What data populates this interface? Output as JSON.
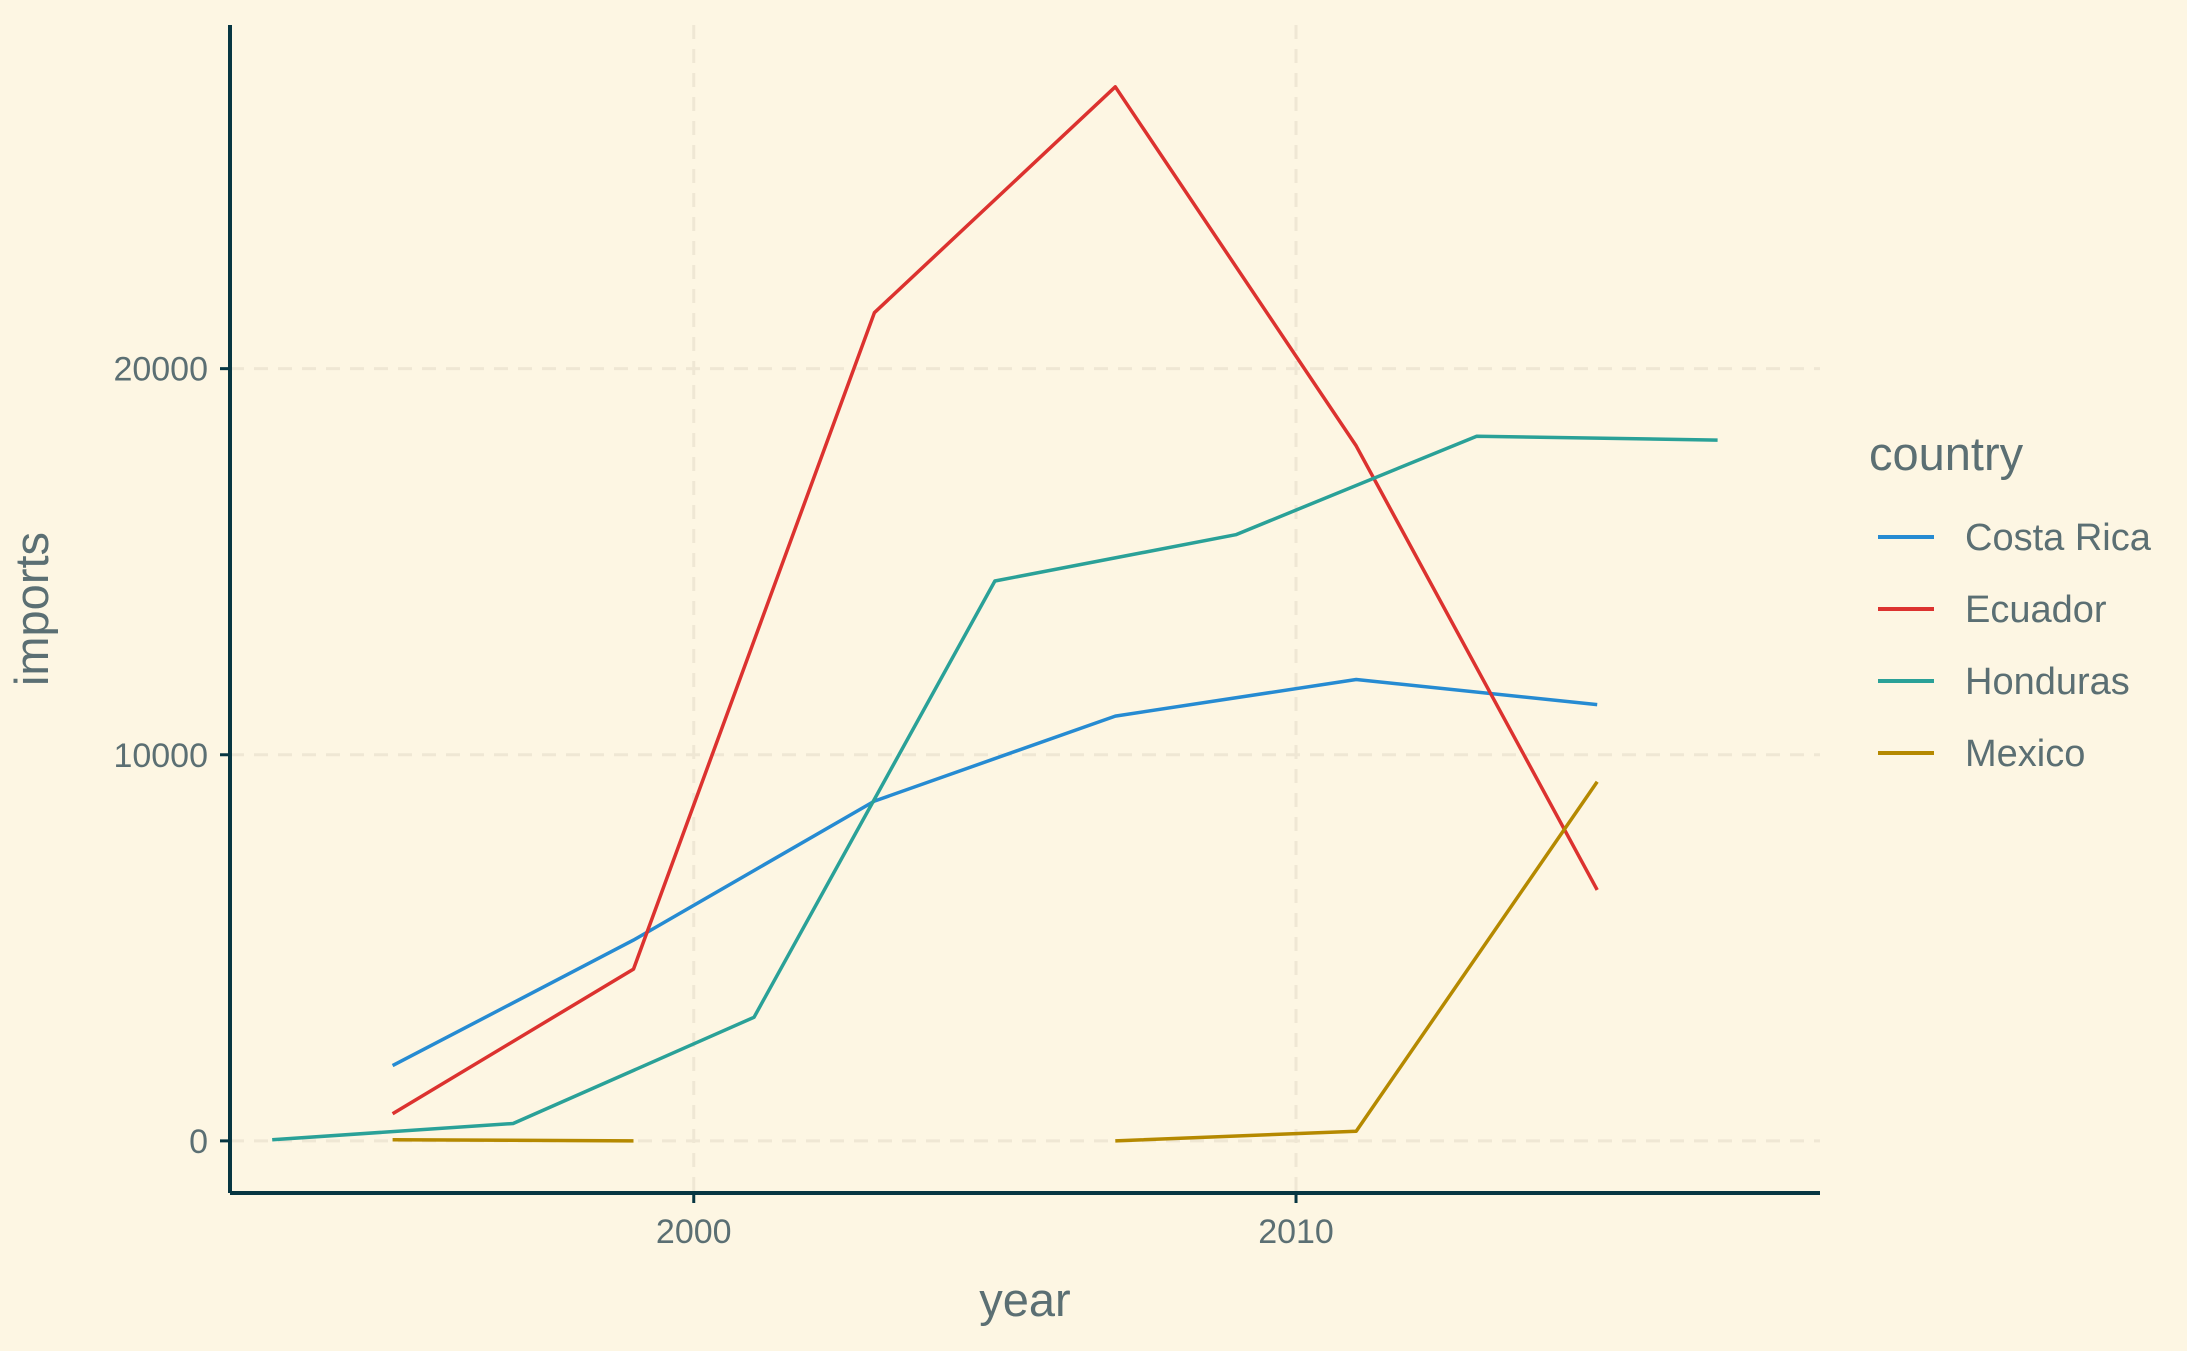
{
  "chart_data": {
    "type": "line",
    "title": "",
    "xlabel": "year",
    "ylabel": "imports",
    "xlim": [
      1992.3,
      2018.7
    ],
    "ylim": [
      -1350,
      28900
    ],
    "x_ticks": [
      2000,
      2010
    ],
    "y_ticks": [
      0,
      10000,
      20000
    ],
    "x_tick_labels": [
      "2000",
      "2010"
    ],
    "y_tick_labels": [
      "0",
      "10000",
      "20000"
    ],
    "grid": true,
    "legend": {
      "title": "country",
      "placement": "right"
    },
    "series": [
      {
        "name": "Costa Rica",
        "color": "#268bd2",
        "points": [
          [
            1995,
            1950
          ],
          [
            1999,
            5200
          ],
          [
            2003,
            8800
          ],
          [
            2007,
            11000
          ],
          [
            2011,
            11950
          ],
          [
            2015,
            11300
          ]
        ]
      },
      {
        "name": "Ecuador",
        "color": "#dc322f",
        "points": [
          [
            1995,
            700
          ],
          [
            1999,
            4450
          ],
          [
            2003,
            21450
          ],
          [
            2007,
            27300
          ],
          [
            2011,
            18000
          ],
          [
            2015,
            6500
          ]
        ]
      },
      {
        "name": "Honduras",
        "color": "#2aa198",
        "points": [
          [
            1993,
            30
          ],
          [
            1997,
            450
          ],
          [
            2001,
            3200
          ],
          [
            2005,
            14500
          ],
          [
            2009,
            15700
          ],
          [
            2013,
            18250
          ],
          [
            2017,
            18150
          ]
        ]
      },
      {
        "name": "Mexico",
        "color": "#b58900",
        "segments": [
          [
            [
              1995,
              30
            ],
            [
              1999,
              0
            ]
          ],
          [
            [
              2007,
              0
            ],
            [
              2011,
              250
            ],
            [
              2015,
              9300
            ]
          ]
        ]
      }
    ]
  }
}
